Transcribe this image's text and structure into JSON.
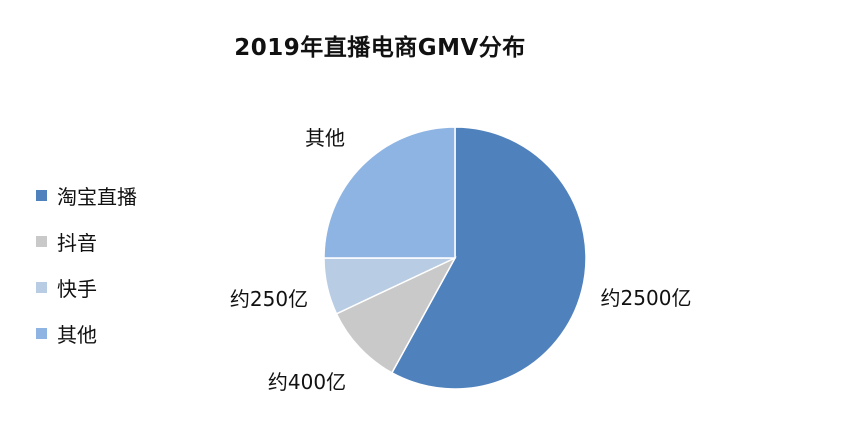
{
  "chart_data": {
    "type": "pie",
    "title": "2019年直播电商GMV分布",
    "categories": [
      "淘宝直播",
      "抖音",
      "快手",
      "其他"
    ],
    "values": [
      58,
      10,
      7,
      25
    ],
    "slice_labels": [
      "约2500亿",
      "约400亿",
      "约250亿",
      "其他"
    ],
    "colors": [
      "#4F81BD",
      "#C9C9C9",
      "#B8CCE4",
      "#8EB4E3"
    ],
    "legend_position": "left"
  }
}
